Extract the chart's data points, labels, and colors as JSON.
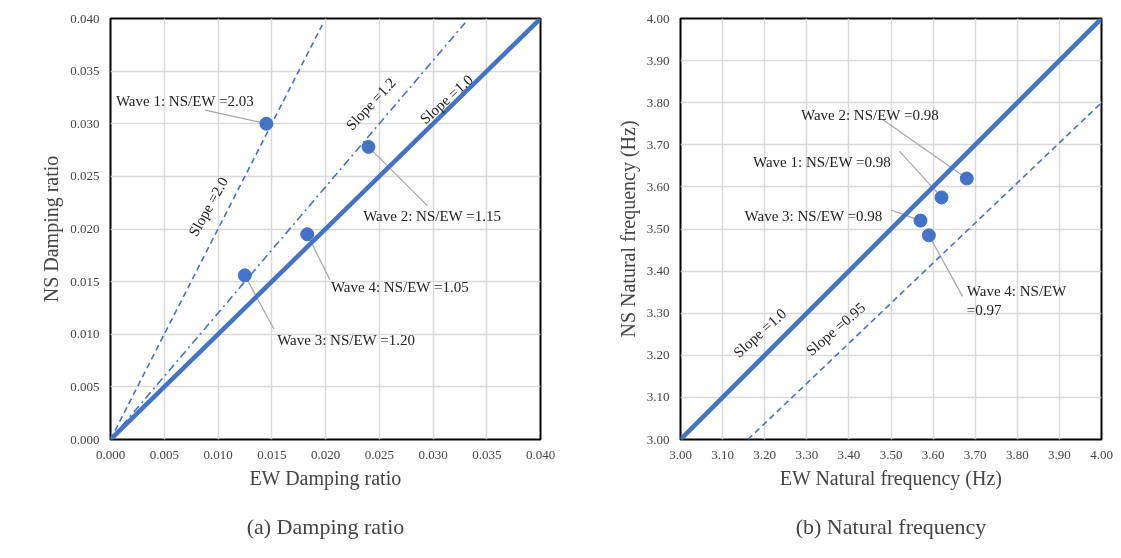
{
  "chart_data": [
    {
      "type": "scatter",
      "title": "(a) Damping ratio",
      "xlabel": "EW Damping ratio",
      "ylabel": "NS Damping ratio",
      "xlim": [
        0,
        0.04
      ],
      "ylim": [
        0,
        0.04
      ],
      "xticks": [
        {
          "value": 0,
          "label": "0.000"
        },
        {
          "value": 0.005,
          "label": "0.005"
        },
        {
          "value": 0.01,
          "label": "0.010"
        },
        {
          "value": 0.015,
          "label": "0.015"
        },
        {
          "value": 0.02,
          "label": "0.020"
        },
        {
          "value": 0.025,
          "label": "0.025"
        },
        {
          "value": 0.03,
          "label": "0.030"
        },
        {
          "value": 0.035,
          "label": "0.035"
        },
        {
          "value": 0.04,
          "label": "0.040"
        }
      ],
      "yticks": [
        {
          "value": 0,
          "label": "0.000"
        },
        {
          "value": 0.005,
          "label": "0.005"
        },
        {
          "value": 0.01,
          "label": "0.010"
        },
        {
          "value": 0.015,
          "label": "0.015"
        },
        {
          "value": 0.02,
          "label": "0.020"
        },
        {
          "value": 0.025,
          "label": "0.025"
        },
        {
          "value": 0.03,
          "label": "0.030"
        },
        {
          "value": 0.035,
          "label": "0.035"
        },
        {
          "value": 0.04,
          "label": "0.040"
        }
      ],
      "grid": true,
      "marker": "circle",
      "series": [
        {
          "type": "line",
          "marker": "none",
          "line_style": "dashed",
          "color": "#4472c4",
          "x": [
            0,
            0.0197
          ],
          "values": [
            0,
            0.0394
          ]
        },
        {
          "type": "line",
          "marker": "none",
          "line_style": "dashdot",
          "color": "#4472c4",
          "x": [
            0,
            0.033
          ],
          "values": [
            0,
            0.0396
          ]
        },
        {
          "type": "line",
          "marker": "none",
          "line_style": "solid",
          "color": "#4472c4",
          "x": [
            0,
            0.04
          ],
          "values": [
            0,
            0.04
          ]
        },
        {
          "color": "#4472c4",
          "x": [
            0.0145,
            0.024,
            0.0125,
            0.0183
          ],
          "values": [
            0.03,
            0.0278,
            0.0156,
            0.0195
          ]
        }
      ],
      "annotations": [
        {
          "text": "Wave 1: NS/EW =2.03",
          "x": 0.0145,
          "y": 0.03
        },
        {
          "text": "Wave 2: NS/EW =1.15",
          "x": 0.024,
          "y": 0.0278
        },
        {
          "text": "Wave 3: NS/EW =1.20",
          "x": 0.0125,
          "y": 0.0156
        },
        {
          "text": "Wave 4: NS/EW =1.05",
          "x": 0.0183,
          "y": 0.0195
        },
        {
          "text": "Slope =2.0",
          "x": 0.0105,
          "y": 0.021
        },
        {
          "text": "Slope =1.2",
          "x": 0.0255,
          "y": 0.0306
        },
        {
          "text": "Slope =1.0",
          "x": 0.031,
          "y": 0.031
        }
      ]
    },
    {
      "type": "scatter",
      "title": "(b) Natural frequency",
      "xlabel": "EW Natural frequency (Hz)",
      "ylabel": "NS Natural frequency (Hz)",
      "xlim": [
        3,
        4
      ],
      "ylim": [
        3,
        4
      ],
      "xticks": [
        {
          "value": 3,
          "label": "3.00"
        },
        {
          "value": 3.1,
          "label": "3.10"
        },
        {
          "value": 3.2,
          "label": "3.20"
        },
        {
          "value": 3.3,
          "label": "3.30"
        },
        {
          "value": 3.4,
          "label": "3.40"
        },
        {
          "value": 3.5,
          "label": "3.50"
        },
        {
          "value": 3.6,
          "label": "3.60"
        },
        {
          "value": 3.7,
          "label": "3.70"
        },
        {
          "value": 3.8,
          "label": "3.80"
        },
        {
          "value": 3.9,
          "label": "3.90"
        },
        {
          "value": 4,
          "label": "4.00"
        }
      ],
      "yticks": [
        {
          "value": 3,
          "label": "3.00"
        },
        {
          "value": 3.1,
          "label": "3.10"
        },
        {
          "value": 3.2,
          "label": "3.20"
        },
        {
          "value": 3.3,
          "label": "3.30"
        },
        {
          "value": 3.4,
          "label": "3.40"
        },
        {
          "value": 3.5,
          "label": "3.50"
        },
        {
          "value": 3.6,
          "label": "3.60"
        },
        {
          "value": 3.7,
          "label": "3.70"
        },
        {
          "value": 3.8,
          "label": "3.80"
        },
        {
          "value": 3.9,
          "label": "3.90"
        },
        {
          "value": 4,
          "label": "4.00"
        }
      ],
      "grid": true,
      "marker": "circle",
      "series": [
        {
          "type": "line",
          "marker": "none",
          "line_style": "solid",
          "color": "#4472c4",
          "x": [
            3,
            4
          ],
          "values": [
            3,
            4
          ]
        },
        {
          "type": "line",
          "marker": "none",
          "line_style": "dashed",
          "color": "#4472c4",
          "x": [
            3.16,
            4
          ],
          "values": [
            3,
            3.8
          ]
        },
        {
          "color": "#4472c4",
          "x": [
            3.62,
            3.68,
            3.57,
            3.59
          ],
          "values": [
            3.575,
            3.62,
            3.52,
            3.485
          ]
        }
      ],
      "annotations": [
        {
          "text": "Wave 1: NS/EW =0.98",
          "x": 3.62,
          "y": 3.575
        },
        {
          "text": "Wave 2: NS/EW =0.98",
          "x": 3.68,
          "y": 3.62
        },
        {
          "text": "Wave 3: NS/EW =0.98",
          "x": 3.57,
          "y": 3.52
        },
        {
          "text": "Wave 4: NS/EW =0.97",
          "x": 3.59,
          "y": 3.485
        },
        {
          "text": "Slope =1.0",
          "x": 3.22,
          "y": 3.22
        },
        {
          "text": "Slope =0.95",
          "x": 3.4,
          "y": 3.229
        }
      ]
    }
  ]
}
